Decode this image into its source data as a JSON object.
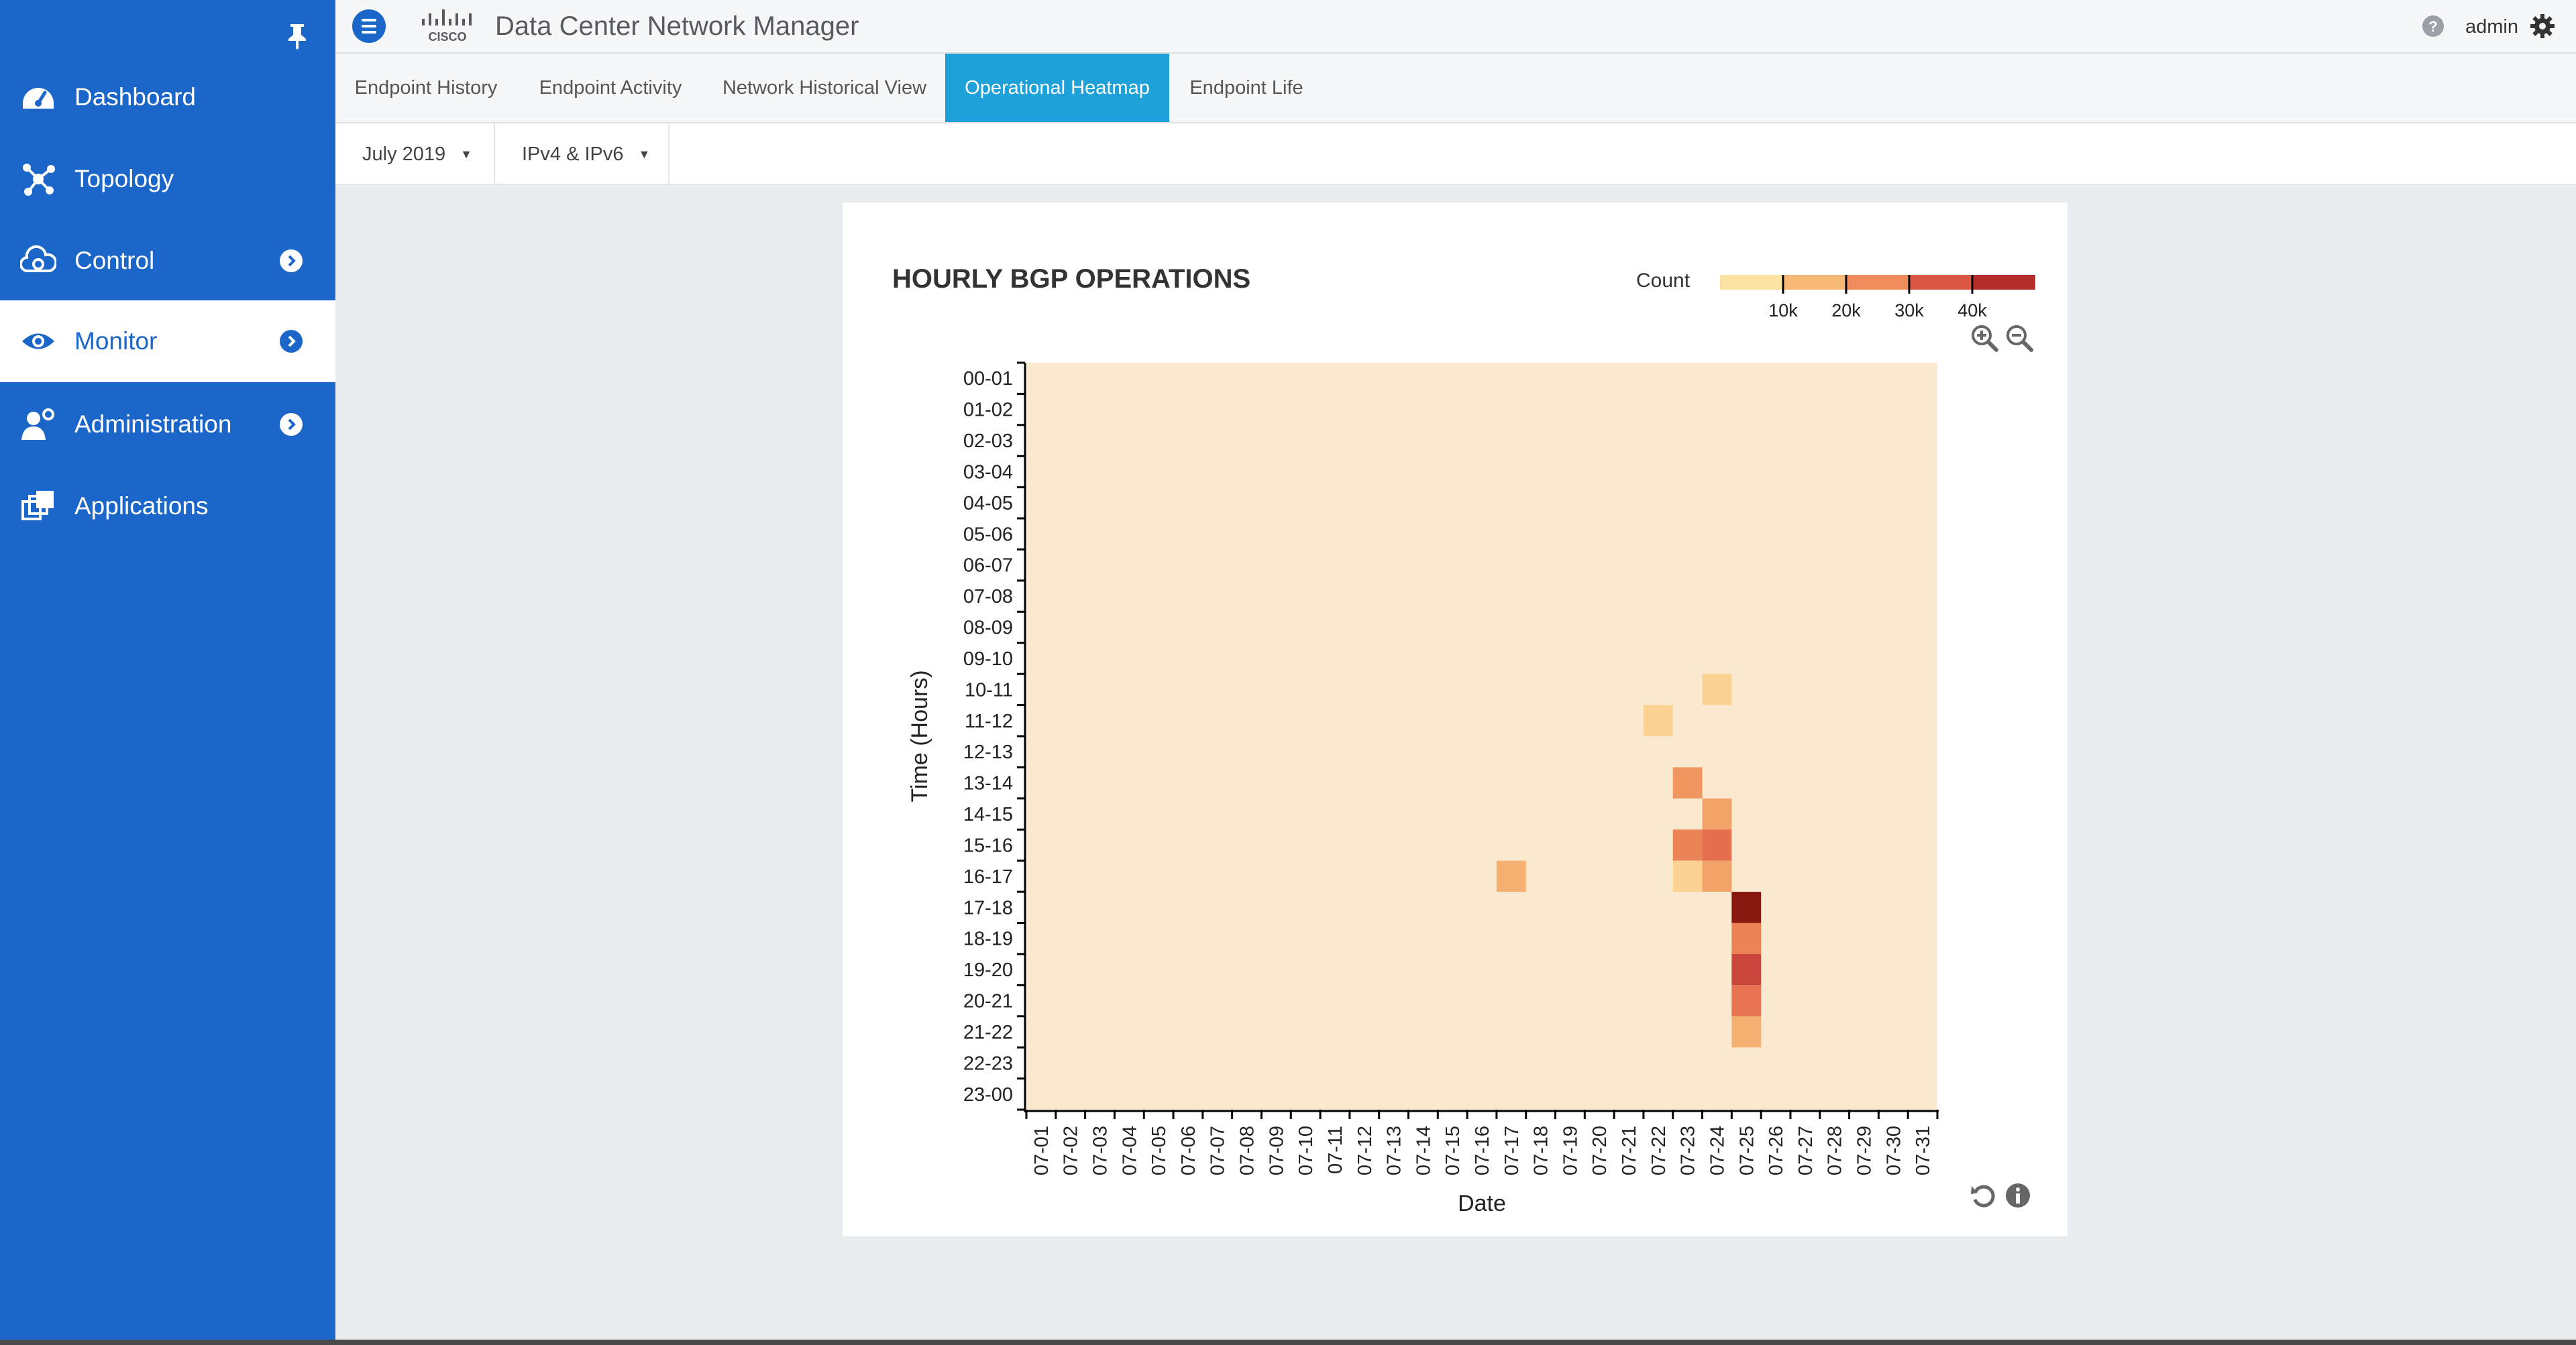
{
  "sidebar": {
    "items": [
      {
        "label": "Dashboard",
        "icon": "dashboard-icon",
        "has_chevron": false
      },
      {
        "label": "Topology",
        "icon": "topology-icon",
        "has_chevron": false
      },
      {
        "label": "Control",
        "icon": "control-icon",
        "has_chevron": true
      },
      {
        "label": "Monitor",
        "icon": "eye-icon",
        "has_chevron": true,
        "active": true
      },
      {
        "label": "Administration",
        "icon": "admin-user-icon",
        "has_chevron": true
      },
      {
        "label": "Applications",
        "icon": "applications-icon",
        "has_chevron": false
      }
    ]
  },
  "header": {
    "title": "Data Center Network Manager",
    "logo_text": "CISCO",
    "user": "admin"
  },
  "tabs": [
    {
      "label": "Endpoint History",
      "active": false
    },
    {
      "label": "Endpoint Activity",
      "active": false
    },
    {
      "label": "Network Historical View",
      "active": false
    },
    {
      "label": "Operational Heatmap",
      "active": true
    },
    {
      "label": "Endpoint Life",
      "active": false
    }
  ],
  "filters": {
    "month": "July 2019",
    "ip_version": "IPv4 & IPv6"
  },
  "colors": {
    "sidebar": "#1b66c9",
    "active_tab": "#1ea1d8",
    "heatmap_background": "#fbe9cf"
  },
  "chart_data": {
    "type": "heatmap",
    "title": "HOURLY BGP OPERATIONS",
    "xlabel": "Date",
    "ylabel": "Time (Hours)",
    "legend": {
      "label": "Count",
      "ticks": [
        "10k",
        "20k",
        "30k",
        "40k"
      ],
      "tick_values": [
        10000,
        20000,
        30000,
        40000
      ],
      "placement": "top-right"
    },
    "x": [
      "07-01",
      "07-02",
      "07-03",
      "07-04",
      "07-05",
      "07-06",
      "07-07",
      "07-08",
      "07-09",
      "07-10",
      "07-11",
      "07-12",
      "07-13",
      "07-14",
      "07-15",
      "07-16",
      "07-17",
      "07-18",
      "07-19",
      "07-20",
      "07-21",
      "07-22",
      "07-23",
      "07-24",
      "07-25",
      "07-26",
      "07-27",
      "07-28",
      "07-29",
      "07-30",
      "07-31"
    ],
    "y": [
      "00-01",
      "01-02",
      "02-03",
      "03-04",
      "04-05",
      "05-06",
      "06-07",
      "07-08",
      "08-09",
      "09-10",
      "10-11",
      "11-12",
      "12-13",
      "13-14",
      "14-15",
      "15-16",
      "16-17",
      "17-18",
      "18-19",
      "19-20",
      "20-21",
      "21-22",
      "22-23",
      "23-00"
    ],
    "cells": [
      {
        "date": "07-24",
        "hour": "10-11",
        "value": 4000
      },
      {
        "date": "07-22",
        "hour": "11-12",
        "value": 4000
      },
      {
        "date": "07-23",
        "hour": "13-14",
        "value": 18000
      },
      {
        "date": "07-24",
        "hour": "14-15",
        "value": 15000
      },
      {
        "date": "07-23",
        "hour": "15-16",
        "value": 22000
      },
      {
        "date": "07-24",
        "hour": "15-16",
        "value": 26000
      },
      {
        "date": "07-17",
        "hour": "16-17",
        "value": 12000
      },
      {
        "date": "07-23",
        "hour": "16-17",
        "value": 4000
      },
      {
        "date": "07-24",
        "hour": "16-17",
        "value": 15000
      },
      {
        "date": "07-25",
        "hour": "17-18",
        "value": 48000
      },
      {
        "date": "07-25",
        "hour": "18-19",
        "value": 22000
      },
      {
        "date": "07-25",
        "hour": "19-20",
        "value": 34000
      },
      {
        "date": "07-25",
        "hour": "20-21",
        "value": 25000
      },
      {
        "date": "07-25",
        "hour": "21-22",
        "value": 12000
      }
    ],
    "grid": false
  }
}
